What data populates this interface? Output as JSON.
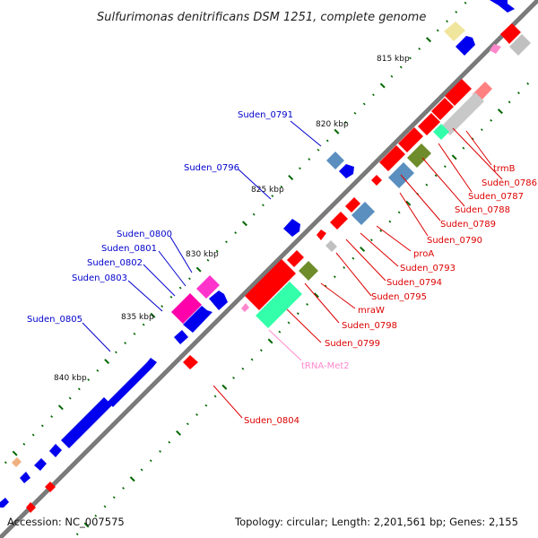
{
  "title": "Sulfurimonas denitrificans DSM 1251, complete genome",
  "accession": "Accession: NC_007575",
  "topology": "Topology: circular; Length: 2,201,561 bp; Genes: 2,155",
  "colors": {
    "forward_label": "#0000cc",
    "reverse_label": "#dd0000",
    "trna_label": "#ff88cc",
    "backbone": "#777777",
    "tick": "#006600"
  },
  "kbp_labels": [
    "815 kbp",
    "820 kbp",
    "825 kbp",
    "830 kbp",
    "835 kbp",
    "840 kbp"
  ],
  "forward_labels": [
    "Suden_0791",
    "Suden_0796",
    "Suden_0800",
    "Suden_0801",
    "Suden_0802",
    "Suden_0803",
    "Suden_0805"
  ],
  "reverse_labels": [
    "trmB",
    "Suden_0786",
    "Suden_0787",
    "Suden_0788",
    "Suden_0789",
    "Suden_0790",
    "proA",
    "Suden_0793",
    "Suden_0794",
    "Suden_0795",
    "mraW",
    "Suden_0798",
    "Suden_0799",
    "Suden_0804"
  ],
  "trna_labels": [
    "tRNA-Met2"
  ]
}
